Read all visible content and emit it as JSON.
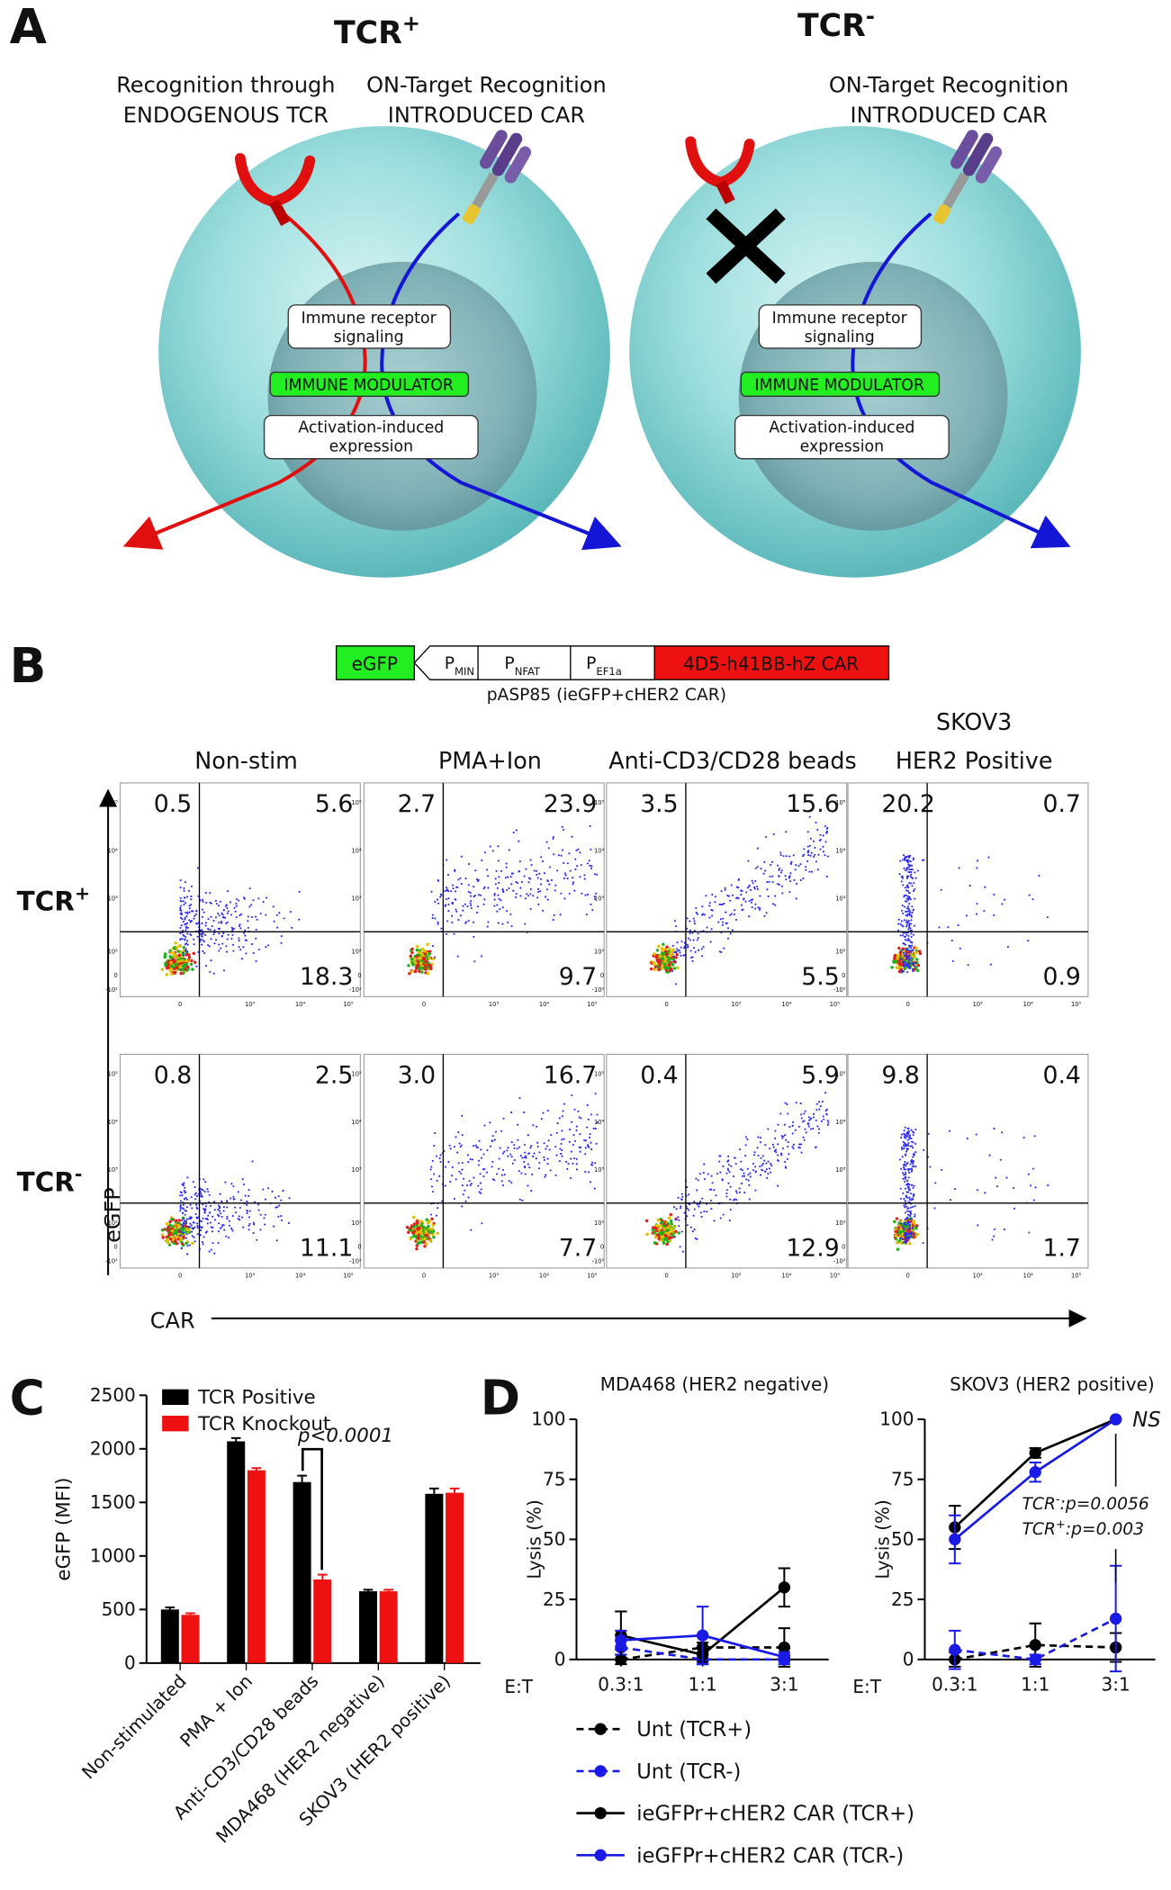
{
  "panel_labels": {
    "a": "A",
    "b": "B",
    "c": "C",
    "d": "D"
  },
  "panel_a": {
    "cells": [
      {
        "title": {
          "text": "TCR",
          "sup": "+"
        },
        "left_label": [
          "Recognition through",
          "ENDOGENOUS TCR"
        ],
        "right_label": [
          "ON-Target Recognition",
          "INTRODUCED CAR"
        ]
      },
      {
        "title": {
          "text": "TCR",
          "sup": "-"
        },
        "right_label": [
          "ON-Target Recognition",
          "INTRODUCED CAR"
        ]
      }
    ],
    "boxes": {
      "signaling": [
        "Immune receptor",
        "signaling"
      ],
      "modulator": "IMMUNE MODULATOR",
      "expression": [
        "Activation-induced",
        "expression"
      ]
    }
  },
  "panel_b": {
    "construct": {
      "egfp": "eGFP",
      "promoters": [
        {
          "text": "P",
          "sub": "MIN"
        },
        {
          "text": "P",
          "sub": "NFAT"
        },
        {
          "text": "P",
          "sub": "EF1a"
        }
      ],
      "car": "4D5-h41BB-hZ CAR",
      "caption": "pASP85 (ieGFP+cHER2 CAR)"
    },
    "columns": [
      [
        "Non-stim"
      ],
      [
        "PMA+Ion"
      ],
      [
        "Anti-CD3/CD28 beads"
      ],
      [
        "SKOV3",
        "HER2 Positive"
      ]
    ],
    "rows": [
      {
        "text": "TCR",
        "sup": "+"
      },
      {
        "text": "TCR",
        "sup": "-"
      }
    ],
    "quadrants": [
      [
        [
          "0.5",
          "5.6",
          "18.3"
        ],
        [
          "2.7",
          "23.9",
          "9.7"
        ],
        [
          "3.5",
          "15.6",
          "5.5"
        ],
        [
          "20.2",
          "0.7",
          "0.9"
        ]
      ],
      [
        [
          "0.8",
          "2.5",
          "11.1"
        ],
        [
          "3.0",
          "16.7",
          "7.7"
        ],
        [
          "0.4",
          "5.9",
          "12.9"
        ],
        [
          "9.8",
          "0.4",
          "1.7"
        ]
      ]
    ],
    "y_axis_label": "eGFP",
    "x_axis_label": "CAR",
    "flow_yticks": [
      "10⁵",
      "10⁴",
      "10³",
      "10²",
      "0",
      "-10²"
    ],
    "flow_xticks": [
      "0",
      "10³",
      "10⁴",
      "10⁵"
    ]
  },
  "chart_data": [
    {
      "type": "bar",
      "ylabel": "eGFP (MFI)",
      "categories": [
        "Non-stimulated",
        "PMA + Ion",
        "Anti-CD3/CD28 beads",
        "MDA468 (HER2 negative)",
        "SKOV3 (HER2 positive)"
      ],
      "series": [
        {
          "name": "TCR Positive",
          "color": "#000000",
          "values": [
            500,
            2070,
            1690,
            670,
            1580
          ],
          "errors": [
            20,
            30,
            60,
            15,
            50
          ]
        },
        {
          "name": "TCR Knockout",
          "color": "#ee1111",
          "values": [
            450,
            1800,
            780,
            670,
            1590
          ],
          "errors": [
            15,
            20,
            45,
            15,
            40
          ]
        }
      ],
      "ylim": [
        0,
        2500
      ],
      "yticks": [
        0,
        500,
        1000,
        1500,
        2000,
        2500
      ],
      "annotation": "p<0.0001"
    },
    {
      "type": "line",
      "title": "MDA468 (HER2 negative)",
      "ylabel": "Lysis (%)",
      "xlabel": "E:T",
      "categories": [
        "0.3:1",
        "1:1",
        "3:1"
      ],
      "series": [
        {
          "name": "Unt (TCR+)",
          "color": "#000000",
          "dash": true,
          "values": [
            0,
            5,
            5
          ],
          "errors": [
            2,
            2,
            8
          ]
        },
        {
          "name": "Unt (TCR-)",
          "color": "#1a1ae6",
          "dash": true,
          "values": [
            5,
            0,
            0
          ],
          "errors": [
            3,
            2,
            2
          ]
        },
        {
          "name": "ieGFPr+cHER2 CAR (TCR+)",
          "color": "#000000",
          "dash": false,
          "values": [
            10,
            2,
            30
          ],
          "errors": [
            10,
            3,
            8
          ]
        },
        {
          "name": "ieGFPr+cHER2 CAR (TCR-)",
          "color": "#1a1ae6",
          "dash": false,
          "values": [
            8,
            10,
            1
          ],
          "errors": [
            4,
            12,
            2
          ]
        }
      ],
      "ylim": [
        0,
        100
      ],
      "yticks": [
        0,
        25,
        50,
        75,
        100
      ]
    },
    {
      "type": "line",
      "title": "SKOV3 (HER2 positive)",
      "ylabel": "Lysis (%)",
      "xlabel": "E:T",
      "categories": [
        "0.3:1",
        "1:1",
        "3:1"
      ],
      "series": [
        {
          "color": "#000000",
          "dash": true,
          "values": [
            0,
            6,
            5
          ],
          "errors": [
            3,
            9,
            6
          ]
        },
        {
          "color": "#1a1ae6",
          "dash": true,
          "values": [
            4,
            0,
            17
          ],
          "errors": [
            8,
            2,
            22
          ]
        },
        {
          "color": "#000000",
          "dash": false,
          "values": [
            55,
            86,
            100
          ],
          "errors": [
            9,
            2,
            0
          ]
        },
        {
          "color": "#1a1ae6",
          "dash": false,
          "values": [
            50,
            78,
            100
          ],
          "errors": [
            10,
            4,
            0
          ]
        }
      ],
      "ylim": [
        0,
        100
      ],
      "yticks": [
        0,
        25,
        50,
        75,
        100
      ],
      "annotations": [
        {
          "text": "NS"
        },
        {
          "text": "TCR",
          "sup": "-",
          "rest": ":p=0.0056"
        },
        {
          "text": "TCR",
          "sup": "+",
          "rest": ":p=0.003"
        }
      ]
    }
  ]
}
